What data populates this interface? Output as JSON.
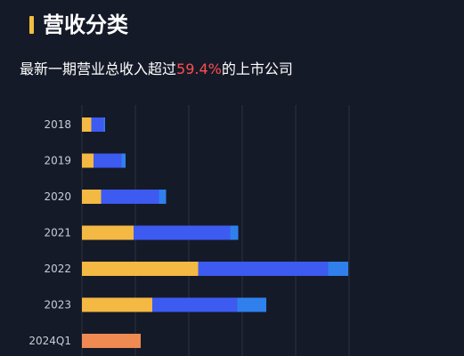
{
  "title": "营收分类",
  "subtitle": {
    "prefix": "最新一期营业总收入超过",
    "highlight": "59.4%",
    "suffix": "的上市公司"
  },
  "colors": {
    "background": "#151a28",
    "accent_bar": "#f2be42",
    "highlight_text": "#ff4d4f",
    "gridline": "#2b3142"
  },
  "chart_data": {
    "type": "bar",
    "orientation": "horizontal",
    "stacked": true,
    "categories": [
      "2018",
      "2019",
      "2020",
      "2021",
      "2022",
      "2023",
      "2024Q1"
    ],
    "series": [
      {
        "color": "#f4b942",
        "values": [
          2.1,
          2.6,
          4.3,
          11.6,
          26.1,
          15.8,
          0
        ]
      },
      {
        "color": "#3d5af1",
        "values": [
          2.8,
          6.3,
          13.0,
          21.7,
          29.2,
          19.1,
          0
        ]
      },
      {
        "color": "#2f80ed",
        "values": [
          0.3,
          0.9,
          1.6,
          1.8,
          4.5,
          6.5,
          0
        ]
      },
      {
        "color": "#ef8a52",
        "values": [
          0,
          0,
          0,
          0,
          0,
          0,
          13.2
        ]
      }
    ],
    "xlim": [
      0,
      60
    ],
    "grid": true
  }
}
